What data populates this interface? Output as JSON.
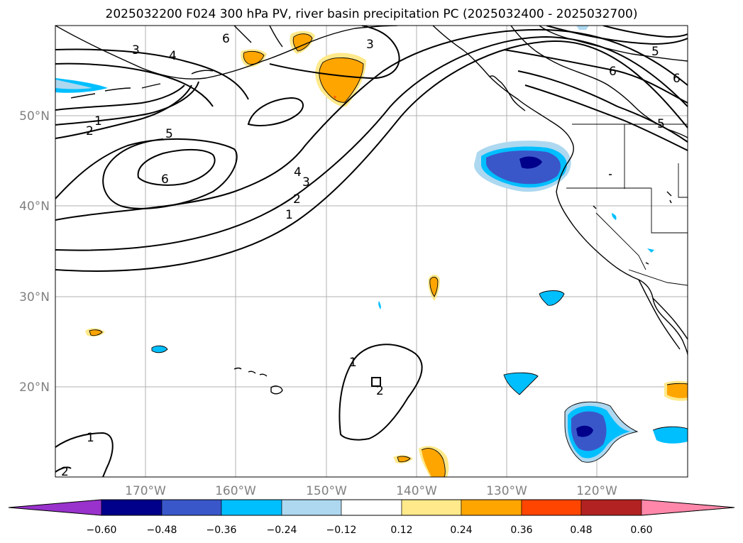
{
  "title": "2025032200 F024 300 hPa PV, river basin precipitation PC (2025032400 - 2025032700)",
  "map": {
    "lon_labels": [
      "170°W",
      "160°W",
      "150°W",
      "140°W",
      "130°W",
      "120°W"
    ],
    "lat_labels": [
      "50°N",
      "40°N",
      "30°N",
      "20°N"
    ],
    "contour_labels": [
      "3",
      "4",
      "6",
      "3",
      "5",
      "6",
      "6",
      "1",
      "2",
      "5",
      "6",
      "4",
      "3",
      "2",
      "1",
      "5",
      "1",
      "2",
      "1",
      "2"
    ]
  },
  "colorbar": {
    "colors": [
      "#9932cc",
      "#00008b",
      "#3a57c9",
      "#00bfff",
      "#add8f0",
      "#ffffff",
      "#ffe98a",
      "#ffa500",
      "#ff4500",
      "#b22222",
      "#ff88aa"
    ],
    "ticks": [
      "−0.60",
      "−0.48",
      "−0.36",
      "−0.24",
      "−0.12",
      "0.12",
      "0.24",
      "0.36",
      "0.48",
      "0.60"
    ]
  }
}
